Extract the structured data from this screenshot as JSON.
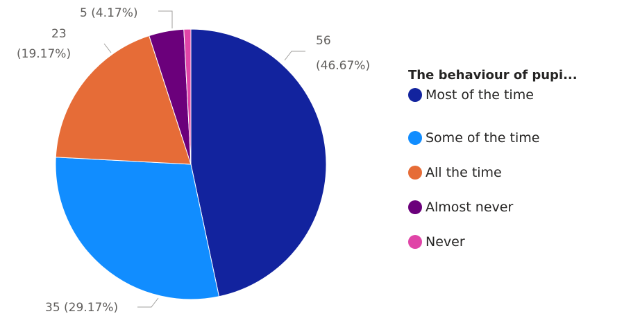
{
  "chart_data": {
    "type": "pie",
    "legend_title": "The behaviour of pupi...",
    "legend_placement": "right",
    "slices": [
      {
        "label": "Most of the time",
        "value": 56,
        "percent": "46.67%",
        "color": "#12239e"
      },
      {
        "label": "Some of the time",
        "value": 35,
        "percent": "29.17%",
        "color": "#118dff"
      },
      {
        "label": "All the time",
        "value": 23,
        "percent": "19.17%",
        "color": "#e66c37"
      },
      {
        "label": "Almost never",
        "value": 5,
        "percent": "4.17%",
        "color": "#6b007b"
      },
      {
        "label": "Never",
        "value": 1,
        "percent": "",
        "color": "#e044a7"
      }
    ],
    "data_labels": [
      "56",
      "(46.67%)",
      "35 (29.17%)",
      "23",
      "(19.17%)",
      "5 (4.17%)"
    ]
  }
}
